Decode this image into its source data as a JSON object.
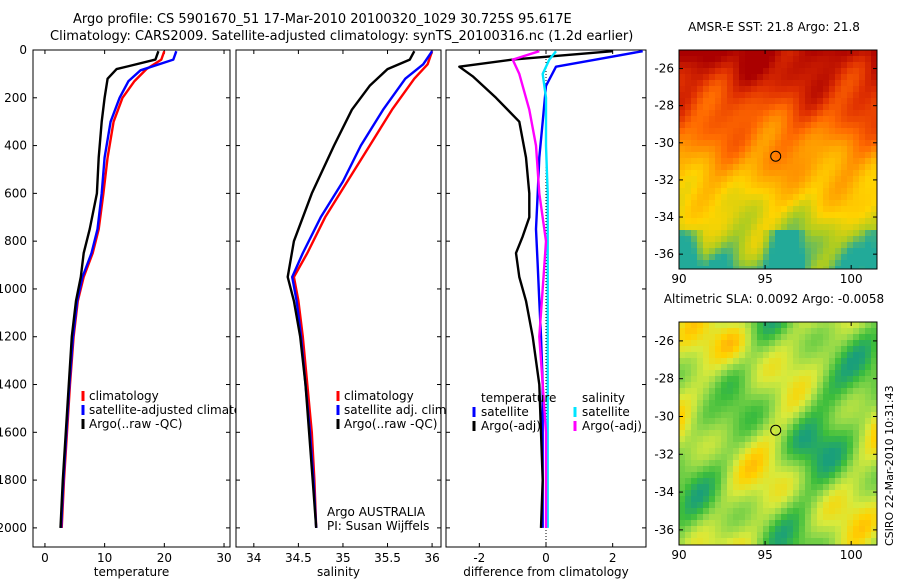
{
  "header": {
    "line1": "Argo profile: CS 5901670_51 17-Mar-2010 20100320_1029 30.725S 95.617E",
    "line2": "Climatology: CARS2009. Satellite-adjusted climatology: synTS_20100316.nc (1.2d earlier)"
  },
  "colors": {
    "climatology": "#ff0000",
    "satellite": "#0000ff",
    "argo": "#000000",
    "sat_salinity": "#00e5ff",
    "argo_salinity": "#ff00ff"
  },
  "chart_data": [
    {
      "type": "line",
      "name": "temperature-profile",
      "xlabel": "temperature",
      "ylabel": "",
      "xlim": [
        -2,
        31
      ],
      "ylim": [
        0,
        2080
      ],
      "y_reversed": true,
      "xticks": [
        0,
        10,
        20,
        30
      ],
      "yticks": [
        0,
        200,
        400,
        600,
        800,
        1000,
        1200,
        1400,
        1600,
        1800,
        2000
      ],
      "legend": [
        "climatology",
        "satellite-adjusted climatology",
        "Argo(..raw -QC)"
      ],
      "series": [
        {
          "name": "climatology",
          "color": "#ff0000",
          "points": [
            [
              20,
              5
            ],
            [
              19.5,
              40
            ],
            [
              17,
              80
            ],
            [
              15,
              130
            ],
            [
              13,
              200
            ],
            [
              11.5,
              300
            ],
            [
              10.5,
              450
            ],
            [
              9.8,
              600
            ],
            [
              9,
              750
            ],
            [
              8,
              850
            ],
            [
              6.5,
              950
            ],
            [
              5.5,
              1050
            ],
            [
              4.8,
              1200
            ],
            [
              4.2,
              1400
            ],
            [
              3.7,
              1600
            ],
            [
              3.2,
              1800
            ],
            [
              2.8,
              2000
            ]
          ]
        },
        {
          "name": "satellite-adjusted climatology",
          "color": "#0000ff",
          "points": [
            [
              22,
              5
            ],
            [
              21.5,
              40
            ],
            [
              16,
              85
            ],
            [
              14,
              130
            ],
            [
              12.5,
              200
            ],
            [
              11,
              300
            ],
            [
              10,
              450
            ],
            [
              9.5,
              600
            ],
            [
              8.8,
              750
            ],
            [
              7.8,
              850
            ],
            [
              6.3,
              950
            ],
            [
              5.4,
              1050
            ],
            [
              4.7,
              1200
            ],
            [
              4.1,
              1400
            ],
            [
              3.6,
              1600
            ],
            [
              3.1,
              1800
            ],
            [
              2.7,
              2000
            ]
          ]
        },
        {
          "name": "Argo(..raw -QC)",
          "color": "#000000",
          "points": [
            [
              19,
              5
            ],
            [
              18.5,
              40
            ],
            [
              12,
              80
            ],
            [
              10.5,
              120
            ],
            [
              10,
              200
            ],
            [
              9.5,
              300
            ],
            [
              9,
              450
            ],
            [
              8.7,
              600
            ],
            [
              7.5,
              750
            ],
            [
              6.5,
              850
            ],
            [
              6,
              950
            ],
            [
              5.2,
              1050
            ],
            [
              4.5,
              1200
            ],
            [
              4,
              1400
            ],
            [
              3.5,
              1600
            ],
            [
              3,
              1800
            ],
            [
              2.6,
              2000
            ]
          ]
        }
      ]
    },
    {
      "type": "line",
      "name": "salinity-profile",
      "xlabel": "salinity",
      "ylabel": "",
      "xlim": [
        33.8,
        36.1
      ],
      "ylim": [
        0,
        2080
      ],
      "y_reversed": true,
      "xticks": [
        34,
        34.5,
        35,
        35.5,
        36
      ],
      "legend": [
        "climatology",
        "satellite adj. clim.",
        "Argo(..raw -QC)"
      ],
      "annotation": [
        "Argo AUSTRALIA",
        "PI: Susan Wijffels"
      ],
      "series": [
        {
          "name": "climatology",
          "color": "#ff0000",
          "points": [
            [
              36,
              5
            ],
            [
              35.95,
              60
            ],
            [
              35.8,
              120
            ],
            [
              35.55,
              250
            ],
            [
              35.3,
              400
            ],
            [
              35.05,
              550
            ],
            [
              34.8,
              700
            ],
            [
              34.6,
              850
            ],
            [
              34.45,
              950
            ],
            [
              34.5,
              1050
            ],
            [
              34.55,
              1200
            ],
            [
              34.6,
              1400
            ],
            [
              34.65,
              1600
            ],
            [
              34.68,
              1800
            ],
            [
              34.7,
              2000
            ]
          ]
        },
        {
          "name": "satellite adj. clim.",
          "color": "#0000ff",
          "points": [
            [
              36,
              5
            ],
            [
              35.9,
              60
            ],
            [
              35.7,
              120
            ],
            [
              35.45,
              250
            ],
            [
              35.2,
              400
            ],
            [
              35,
              550
            ],
            [
              34.75,
              700
            ],
            [
              34.55,
              850
            ],
            [
              34.43,
              950
            ],
            [
              34.48,
              1050
            ],
            [
              34.53,
              1200
            ],
            [
              34.58,
              1400
            ],
            [
              34.63,
              1600
            ],
            [
              34.67,
              1800
            ],
            [
              34.7,
              2000
            ]
          ]
        },
        {
          "name": "Argo(..raw -QC)",
          "color": "#000000",
          "points": [
            [
              35.8,
              5
            ],
            [
              35.75,
              40
            ],
            [
              35.5,
              80
            ],
            [
              35.3,
              150
            ],
            [
              35.1,
              250
            ],
            [
              34.9,
              400
            ],
            [
              34.65,
              600
            ],
            [
              34.45,
              800
            ],
            [
              34.38,
              950
            ],
            [
              34.45,
              1050
            ],
            [
              34.52,
              1200
            ],
            [
              34.58,
              1400
            ],
            [
              34.62,
              1600
            ],
            [
              34.66,
              1800
            ],
            [
              34.7,
              2000
            ]
          ]
        }
      ]
    },
    {
      "type": "line",
      "name": "difference-profile",
      "xlabel": "difference from climatology",
      "ylabel": "",
      "xlim": [
        -3,
        3
      ],
      "ylim": [
        0,
        2080
      ],
      "y_reversed": true,
      "xticks": [
        -2,
        0,
        2
      ],
      "legend_temperature": {
        "heading": "temperature",
        "items": [
          "satellite",
          "Argo(-adj)"
        ]
      },
      "legend_salinity": {
        "heading": "salinity",
        "items": [
          "satellite",
          "Argo(-adj)"
        ]
      },
      "series": [
        {
          "name": "temperature satellite",
          "color": "#0000ff",
          "points": [
            [
              2.9,
              5
            ],
            [
              1.5,
              40
            ],
            [
              0.3,
              70
            ],
            [
              0,
              150
            ],
            [
              -0.1,
              300
            ],
            [
              -0.2,
              450
            ],
            [
              -0.25,
              600
            ],
            [
              -0.3,
              750
            ],
            [
              -0.25,
              900
            ],
            [
              -0.2,
              1050
            ],
            [
              -0.15,
              1200
            ],
            [
              -0.1,
              1400
            ],
            [
              -0.1,
              1600
            ],
            [
              -0.1,
              1800
            ],
            [
              -0.1,
              2000
            ]
          ]
        },
        {
          "name": "temperature Argo(-adj)",
          "color": "#000000",
          "points": [
            [
              2,
              5
            ],
            [
              -1,
              40
            ],
            [
              -2.6,
              70
            ],
            [
              -2.2,
              110
            ],
            [
              -1.5,
              200
            ],
            [
              -0.8,
              300
            ],
            [
              -0.6,
              450
            ],
            [
              -0.5,
              600
            ],
            [
              -0.5,
              700
            ],
            [
              -0.7,
              780
            ],
            [
              -0.9,
              850
            ],
            [
              -0.8,
              950
            ],
            [
              -0.6,
              1050
            ],
            [
              -0.4,
              1200
            ],
            [
              -0.2,
              1400
            ],
            [
              -0.15,
              1600
            ],
            [
              -0.1,
              1800
            ],
            [
              -0.15,
              2000
            ]
          ]
        },
        {
          "name": "salinity satellite",
          "color": "#00e5ff",
          "points": [
            [
              0.3,
              5
            ],
            [
              0.1,
              40
            ],
            [
              -0.1,
              100
            ],
            [
              0,
              200
            ],
            [
              0,
              400
            ],
            [
              0.05,
              600
            ],
            [
              0.05,
              800
            ],
            [
              0.05,
              1000
            ],
            [
              0.05,
              1200
            ],
            [
              0.05,
              1400
            ],
            [
              0.05,
              1600
            ],
            [
              0.05,
              1800
            ],
            [
              0.05,
              2000
            ]
          ]
        },
        {
          "name": "salinity Argo(-adj)",
          "color": "#ff00ff",
          "points": [
            [
              -0.2,
              5
            ],
            [
              -1,
              40
            ],
            [
              -0.8,
              100
            ],
            [
              -0.5,
              250
            ],
            [
              -0.3,
              400
            ],
            [
              -0.2,
              600
            ],
            [
              0,
              800
            ],
            [
              -0.1,
              1000
            ],
            [
              -0.2,
              1200
            ],
            [
              -0.1,
              1400
            ],
            [
              0,
              1600
            ],
            [
              0,
              1800
            ],
            [
              0,
              2000
            ]
          ]
        }
      ]
    },
    {
      "type": "heatmap",
      "name": "sst-map",
      "title": "AMSR-E SST: 21.8  Argo: 21.8",
      "xlim": [
        90,
        101.5
      ],
      "ylim": [
        -36.8,
        -25
      ],
      "xticks": [
        90,
        95,
        100
      ],
      "yticks": [
        -26,
        -28,
        -30,
        -32,
        -34,
        -36
      ],
      "argo_position": [
        95.617,
        -30.725
      ],
      "colormap": [
        "#22aa99",
        "#aacc22",
        "#ffd400",
        "#ffa500",
        "#ff6a00",
        "#e03000",
        "#aa0000"
      ]
    },
    {
      "type": "heatmap",
      "name": "sla-map",
      "title": "Altimetric SLA: 0.0092  Argo: -0.0058",
      "xlim": [
        90,
        101.5
      ],
      "ylim": [
        -36.8,
        -25
      ],
      "xticks": [
        90,
        95,
        100
      ],
      "yticks": [
        -26,
        -28,
        -30,
        -32,
        -34,
        -36
      ],
      "argo_position": [
        95.617,
        -30.725
      ],
      "colormap": [
        "#1a9f7a",
        "#3cbd3c",
        "#8fd84a",
        "#d8ea3c",
        "#ffd200",
        "#ff9a10"
      ]
    }
  ],
  "credit": "CSIRO  22-Mar-2010 10:31:43"
}
